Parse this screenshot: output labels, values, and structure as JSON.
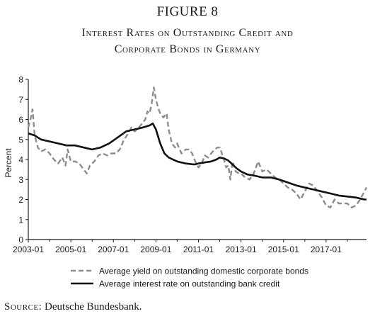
{
  "figure_label": "FIGURE 8",
  "chart_data": {
    "type": "line",
    "title": "Interest Rates on Outstanding Credit and Corporate Bonds in Germany",
    "title_lines": [
      "Interest Rates on Outstanding Credit and",
      "Corporate Bonds in Germany"
    ],
    "xlabel": "",
    "ylabel": "Percent",
    "xlim": [
      2003.0,
      2018.9
    ],
    "ylim": [
      0,
      8
    ],
    "x_ticks": [
      "2003-01",
      "2005-01",
      "2007-01",
      "2009-01",
      "2011-01",
      "2013-01",
      "2015-01",
      "2017-01"
    ],
    "y_ticks": [
      0,
      1,
      2,
      3,
      4,
      5,
      6,
      7,
      8
    ],
    "grid": false,
    "legend_position": "bottom",
    "series": [
      {
        "name": "Average yield on outstanding domestic corporate bonds",
        "style": "dashed",
        "color": "#8c8c8c",
        "x": [
          2003.0,
          2003.1,
          2003.2,
          2003.3,
          2003.45,
          2003.6,
          2003.8,
          2004.0,
          2004.2,
          2004.4,
          2004.6,
          2004.75,
          2004.85,
          2005.0,
          2005.2,
          2005.4,
          2005.6,
          2005.75,
          2005.9,
          2006.1,
          2006.3,
          2006.5,
          2006.7,
          2006.9,
          2007.1,
          2007.3,
          2007.5,
          2007.7,
          2007.85,
          2008.0,
          2008.2,
          2008.35,
          2008.5,
          2008.6,
          2008.7,
          2008.8,
          2008.9,
          2009.0,
          2009.1,
          2009.2,
          2009.35,
          2009.5,
          2009.6,
          2009.75,
          2009.9,
          2010.0,
          2010.2,
          2010.4,
          2010.55,
          2010.7,
          2010.85,
          2011.0,
          2011.15,
          2011.3,
          2011.45,
          2011.6,
          2011.75,
          2011.9,
          2012.0,
          2012.2,
          2012.3,
          2012.4,
          2012.5,
          2012.6,
          2012.75,
          2012.9,
          2013.0,
          2013.2,
          2013.4,
          2013.6,
          2013.8,
          2014.0,
          2014.2,
          2014.4,
          2014.6,
          2014.8,
          2015.0,
          2015.2,
          2015.4,
          2015.6,
          2015.8,
          2016.0,
          2016.2,
          2016.4,
          2016.6,
          2016.8,
          2017.0,
          2017.2,
          2017.4,
          2017.6,
          2017.8,
          2018.0,
          2018.2,
          2018.4,
          2018.6,
          2018.8,
          2018.9
        ],
        "y": [
          5.6,
          6.0,
          6.5,
          5.2,
          4.6,
          4.4,
          4.5,
          4.3,
          4.0,
          3.8,
          4.1,
          3.7,
          4.5,
          3.9,
          3.9,
          3.8,
          3.5,
          3.3,
          3.7,
          3.9,
          4.2,
          4.3,
          4.2,
          4.3,
          4.3,
          4.5,
          5.0,
          5.3,
          5.6,
          5.4,
          5.6,
          5.8,
          6.0,
          6.4,
          6.3,
          6.8,
          7.6,
          7.0,
          6.6,
          6.3,
          6.1,
          6.3,
          5.5,
          4.8,
          4.6,
          4.8,
          4.3,
          4.5,
          4.5,
          4.3,
          3.9,
          3.6,
          3.8,
          4.2,
          4.1,
          4.3,
          4.5,
          4.6,
          4.6,
          4.0,
          3.6,
          3.7,
          3.0,
          3.9,
          3.4,
          3.3,
          3.3,
          3.1,
          3.0,
          3.3,
          3.9,
          3.4,
          3.5,
          3.3,
          3.1,
          3.0,
          2.8,
          2.6,
          2.5,
          2.3,
          2.0,
          2.4,
          2.8,
          2.7,
          2.4,
          2.1,
          1.7,
          1.6,
          2.0,
          1.8,
          1.8,
          1.8,
          1.6,
          1.7,
          2.0,
          2.4,
          2.6
        ]
      },
      {
        "name": "Average interest rate on outstanding bank credit",
        "style": "solid",
        "color": "#111111",
        "x": [
          2003.0,
          2003.3,
          2003.6,
          2004.0,
          2004.4,
          2004.8,
          2005.2,
          2005.6,
          2006.0,
          2006.4,
          2006.8,
          2007.2,
          2007.6,
          2008.0,
          2008.4,
          2008.7,
          2008.85,
          2009.0,
          2009.2,
          2009.4,
          2009.6,
          2009.8,
          2010.0,
          2010.4,
          2010.8,
          2011.0,
          2011.3,
          2011.6,
          2011.85,
          2012.0,
          2012.2,
          2012.4,
          2012.6,
          2012.8,
          2013.0,
          2013.3,
          2013.6,
          2014.0,
          2014.4,
          2014.8,
          2015.2,
          2015.6,
          2016.0,
          2016.4,
          2016.8,
          2017.2,
          2017.6,
          2018.0,
          2018.4,
          2018.8,
          2018.9
        ],
        "y": [
          5.3,
          5.2,
          5.0,
          4.9,
          4.8,
          4.7,
          4.7,
          4.6,
          4.5,
          4.6,
          4.8,
          5.1,
          5.4,
          5.5,
          5.6,
          5.7,
          5.8,
          5.5,
          4.8,
          4.3,
          4.1,
          4.0,
          3.9,
          3.8,
          3.75,
          3.8,
          3.85,
          3.9,
          4.0,
          4.1,
          4.05,
          3.95,
          3.75,
          3.55,
          3.4,
          3.25,
          3.2,
          3.1,
          3.1,
          3.0,
          2.85,
          2.7,
          2.6,
          2.5,
          2.4,
          2.3,
          2.2,
          2.15,
          2.1,
          2.0,
          2.0
        ]
      }
    ]
  },
  "source": {
    "label": "Source:",
    "text": "Deutsche Bundesbank."
  }
}
